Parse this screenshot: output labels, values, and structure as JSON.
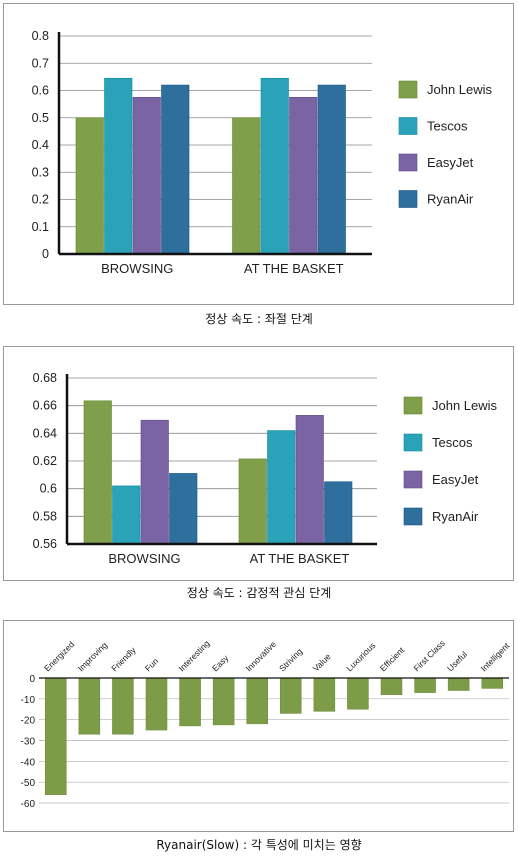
{
  "charts": [
    {
      "caption": "정상 속도 : 좌절 단계",
      "chart_data": {
        "type": "bar",
        "categories": [
          "BROWSING",
          "AT THE BASKET"
        ],
        "series": [
          {
            "name": "John Lewis",
            "values": [
              0.5,
              0.5
            ]
          },
          {
            "name": "Tescos",
            "values": [
              0.645,
              0.645
            ]
          },
          {
            "name": "EasyJet",
            "values": [
              0.575,
              0.575
            ]
          },
          {
            "name": "RyanAir",
            "values": [
              0.62,
              0.62
            ]
          }
        ],
        "ylim": [
          0,
          0.8
        ],
        "yticks": [
          "0",
          "0.1",
          "0.2",
          "0.3",
          "0.4",
          "0.5",
          "0.6",
          "0.7",
          "0.8"
        ],
        "ytick_values": [
          0,
          0.1,
          0.2,
          0.3,
          0.4,
          0.5,
          0.6,
          0.7,
          0.8
        ],
        "grid": true,
        "legend": "right"
      }
    },
    {
      "caption": "정상 속도 : 감정적 관심 단계",
      "chart_data": {
        "type": "bar",
        "categories": [
          "BROWSING",
          "AT THE BASKET"
        ],
        "series": [
          {
            "name": "John Lewis",
            "values": [
              0.6635,
              0.6215
            ]
          },
          {
            "name": "Tescos",
            "values": [
              0.602,
              0.642
            ]
          },
          {
            "name": "EasyJet",
            "values": [
              0.6495,
              0.653
            ]
          },
          {
            "name": "RyanAir",
            "values": [
              0.611,
              0.605
            ]
          }
        ],
        "ylim": [
          0.56,
          0.68
        ],
        "yticks": [
          "0.56",
          "0.58",
          "0.6",
          "0.62",
          "0.64",
          "0.66",
          "0.68"
        ],
        "ytick_values": [
          0.56,
          0.58,
          0.6,
          0.62,
          0.64,
          0.66,
          0.68
        ],
        "grid": true,
        "legend": "right"
      }
    },
    {
      "caption": "Ryanair(Slow) : 각 특성에 미치는 영향",
      "chart_data": {
        "type": "bar",
        "categories": [
          "Energized",
          "Improving",
          "Friendly",
          "Fun",
          "Interesting",
          "Easy",
          "Innovative",
          "Striving",
          "Value",
          "Luxurious",
          "Efficient",
          "First Class",
          "Useful",
          "Intelligent"
        ],
        "values": [
          -56,
          -27,
          -27,
          -25,
          -23,
          -22.5,
          -22,
          -17,
          -16,
          -15,
          -8,
          -7,
          -6,
          -5
        ],
        "ylim": [
          -60,
          0
        ],
        "yticks": [
          "0",
          "-10",
          "-20",
          "-30",
          "-40",
          "-50",
          "-60"
        ],
        "ytick_values": [
          0,
          -10,
          -20,
          -30,
          -40,
          -50,
          -60
        ],
        "grid": true
      }
    }
  ],
  "colors": {
    "John Lewis": "#7f9f4a",
    "Tescos": "#2aa3b8",
    "EasyJet": "#7a64a3",
    "RyanAir": "#2e6f9e",
    "single": "#7d9c48",
    "grid": "#8a8a8a"
  }
}
